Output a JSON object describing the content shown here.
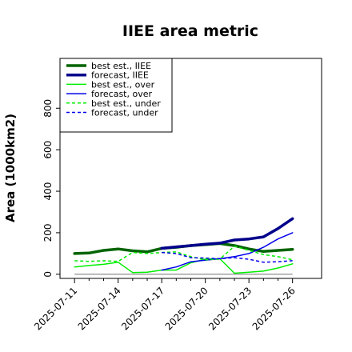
{
  "chart_data": {
    "type": "line",
    "title": "IIEE area metric",
    "ylabel": "Area (1000km2)",
    "xlabel": "",
    "xlim": [
      "2025-07-10",
      "2025-07-28"
    ],
    "ylim": [
      -20,
      1040
    ],
    "y_ticks": [
      0,
      200,
      400,
      600,
      800
    ],
    "x_ticks": [
      "2025-07-11",
      "2025-07-14",
      "2025-07-17",
      "2025-07-20",
      "2025-07-23",
      "2025-07-26"
    ],
    "highlighted_tick": "2025-07-17",
    "highlight_color": "#228b22",
    "grid": false,
    "legend_position": "top-left",
    "zero_line_color": "#808080",
    "dates": [
      "2025-07-11",
      "2025-07-12",
      "2025-07-13",
      "2025-07-14",
      "2025-07-15",
      "2025-07-16",
      "2025-07-17",
      "2025-07-18",
      "2025-07-19",
      "2025-07-20",
      "2025-07-21",
      "2025-07-22",
      "2025-07-23",
      "2025-07-24",
      "2025-07-25",
      "2025-07-26"
    ],
    "series": [
      {
        "name": "best est., IIEE",
        "color": "#006400",
        "style": "solid",
        "width": 3.5,
        "values": [
          100,
          102,
          115,
          122,
          113,
          108,
          125,
          130,
          138,
          143,
          148,
          138,
          122,
          110,
          115,
          120
        ]
      },
      {
        "name": "forecast, IIEE",
        "color": "#00008b",
        "style": "solid",
        "width": 3.5,
        "values": [
          null,
          null,
          null,
          null,
          null,
          null,
          125,
          132,
          138,
          145,
          150,
          165,
          170,
          180,
          220,
          268
        ]
      },
      {
        "name": "best est., over",
        "color": "#00ee00",
        "style": "solid",
        "width": 1.5,
        "values": [
          35,
          42,
          48,
          58,
          8,
          10,
          20,
          20,
          55,
          73,
          75,
          5,
          10,
          15,
          30,
          50
        ]
      },
      {
        "name": "forecast, over",
        "color": "#0000ee",
        "style": "solid",
        "width": 1.5,
        "values": [
          null,
          null,
          null,
          null,
          null,
          null,
          20,
          35,
          60,
          68,
          75,
          85,
          100,
          130,
          170,
          200
        ]
      },
      {
        "name": "best est., under",
        "color": "#00ee00",
        "style": "dashed",
        "width": 1.5,
        "values": [
          65,
          62,
          65,
          62,
          105,
          100,
          105,
          108,
          85,
          70,
          73,
          135,
          115,
          95,
          85,
          70
        ]
      },
      {
        "name": "forecast, under",
        "color": "#0000ee",
        "style": "dashed",
        "width": 1.5,
        "values": [
          null,
          null,
          null,
          null,
          null,
          null,
          105,
          100,
          80,
          78,
          75,
          80,
          72,
          58,
          60,
          65
        ]
      }
    ]
  }
}
